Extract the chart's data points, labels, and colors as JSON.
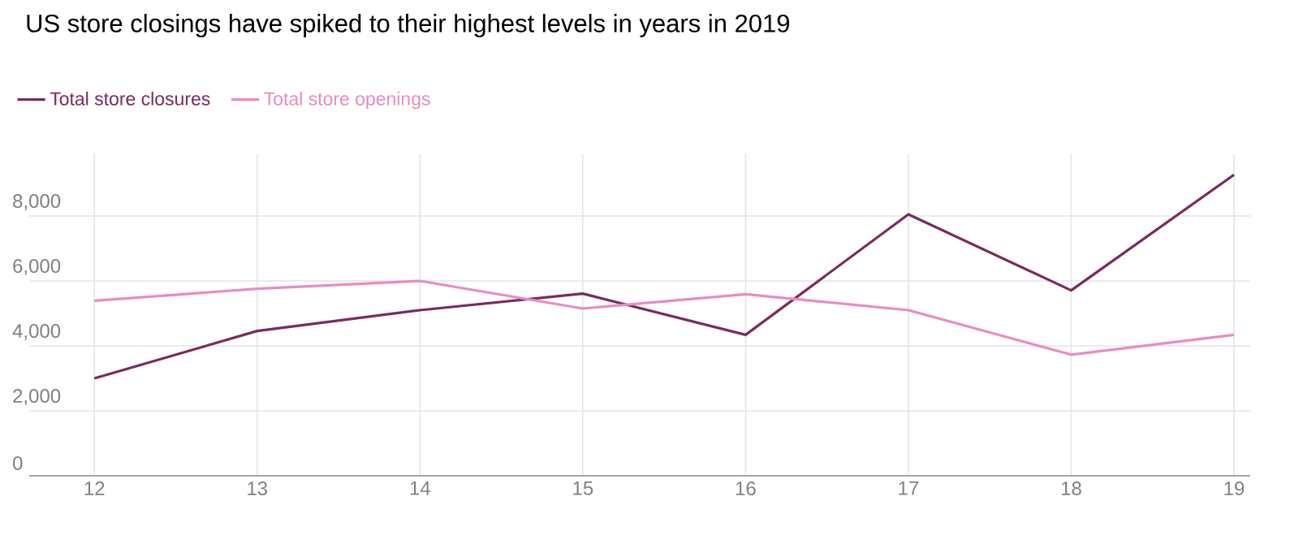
{
  "chart_data": {
    "type": "line",
    "title": "US store closings have spiked to their highest levels in years in 2019",
    "categories": [
      "12",
      "13",
      "14",
      "15",
      "16",
      "17",
      "18",
      "19"
    ],
    "series": [
      {
        "name": "Total store closures",
        "color": "#7b2a5e",
        "values": [
          3000,
          4460,
          5100,
          5610,
          4340,
          8050,
          5710,
          9270
        ]
      },
      {
        "name": "Total store openings",
        "color": "#e98bc3",
        "values": [
          5390,
          5760,
          6000,
          5150,
          5590,
          5100,
          3730,
          4340
        ]
      }
    ],
    "ylim": [
      0,
      9900
    ],
    "yticks": [
      {
        "value": 0,
        "label": "0"
      },
      {
        "value": 2000,
        "label": "2,000"
      },
      {
        "value": 4000,
        "label": "4,000"
      },
      {
        "value": 6000,
        "label": "6,000"
      },
      {
        "value": 8000,
        "label": "8,000"
      }
    ],
    "grid": true,
    "legend": "top left",
    "marker": "none",
    "line_style": "solid"
  }
}
